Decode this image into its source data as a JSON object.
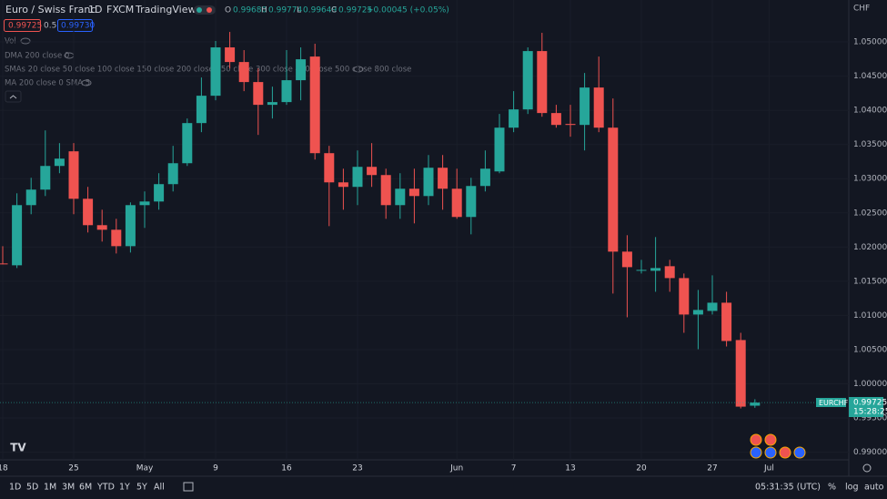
{
  "header": {
    "symbol": "Euro / Swiss Franc",
    "interval": "1D",
    "source": "FXCM",
    "platform": "TradingView",
    "o_label": "O",
    "o_value": "0.99680",
    "h_label": "H",
    "h_value": "0.99774",
    "l_label": "L",
    "l_value": "0.99649",
    "c_label": "C",
    "c_value": "0.99725",
    "change": "+0.00045 (+0.05%)"
  },
  "quote": {
    "bid": "0.99725",
    "spread": "0.5",
    "ask": "0.99730"
  },
  "indicators": [
    "Vol",
    "DMA 200 close 0",
    "SMAs 20 close 50 close 100 close 150 close 200 close 250 close 300 close 400 close 500 close 800 close",
    "MA 200 close 0 SMA 5"
  ],
  "currency": "CHF",
  "price_tag": {
    "symbol": "EURCHF",
    "price": "0.99725",
    "countdown": "15:28:25"
  },
  "toolbar": {
    "ranges": [
      "1D",
      "5D",
      "1M",
      "3M",
      "6M",
      "YTD",
      "1Y",
      "5Y",
      "All"
    ],
    "clock": "05:31:35 (UTC)",
    "percent": "%",
    "log": "log",
    "auto": "auto"
  },
  "chart_data": {
    "type": "candlestick",
    "up_color": "#26a69a",
    "down_color": "#ef5350",
    "categories": [
      "18",
      null,
      null,
      null,
      null,
      "25",
      null,
      null,
      null,
      null,
      "May",
      null,
      null,
      null,
      null,
      "9",
      null,
      null,
      null,
      null,
      "16",
      null,
      null,
      null,
      null,
      "23",
      null,
      null,
      null,
      null,
      null,
      null,
      "Jun",
      null,
      null,
      null,
      "7",
      null,
      null,
      null,
      "13",
      null,
      null,
      null,
      null,
      "20",
      null,
      null,
      null,
      null,
      "27",
      null,
      null,
      null,
      "Jul"
    ],
    "open": [
      1.0176,
      1.01733,
      1.02613,
      1.0284,
      1.03186,
      1.034,
      1.02706,
      1.0232,
      1.02253,
      1.02013,
      1.02613,
      1.02666,
      1.0292,
      1.03226,
      1.03813,
      1.04213,
      1.0492,
      1.04706,
      1.04413,
      1.0408,
      1.0412,
      1.0444,
      1.04786,
      1.03373,
      1.02946,
      1.0288,
      1.03173,
      1.03053,
      1.02613,
      1.02853,
      1.02746,
      1.0316,
      1.02853,
      1.0244,
      1.02893,
      1.03106,
      1.03746,
      1.04013,
      1.04866,
      1.0396,
      1.038,
      1.03786,
      1.04333,
      1.03746,
      1.01933,
      1.01653,
      1.01653,
      1.0172,
      1.01546,
      1.01013,
      1.01066,
      1.01186,
      1.0064,
      0.9968,
      null
    ],
    "high": [
      1.02013,
      1.02786,
      1.03013,
      1.03706,
      1.0352,
      1.0352,
      1.0288,
      1.02546,
      1.02413,
      1.02653,
      1.02813,
      1.0308,
      1.0348,
      1.0388,
      1.0448,
      1.05013,
      1.05146,
      1.0488,
      1.04613,
      1.04346,
      1.0488,
      1.0492,
      1.04973,
      1.0348,
      1.03146,
      1.03413,
      1.0352,
      1.03146,
      1.0308,
      1.03146,
      1.03346,
      1.03346,
      1.03146,
      1.03013,
      1.03413,
      1.03946,
      1.0428,
      1.0492,
      1.05133,
      1.0408,
      1.0408,
      1.04546,
      1.04786,
      1.04173,
      1.02173,
      1.01813,
      1.02146,
      1.01813,
      1.01613,
      1.01373,
      1.01586,
      1.01346,
      1.00746,
      0.99774,
      null
    ],
    "low": [
      1.01746,
      1.01693,
      1.0248,
      1.02746,
      1.0308,
      1.0248,
      1.02213,
      1.0208,
      1.01906,
      1.0192,
      1.0228,
      1.02546,
      1.02813,
      1.03186,
      1.0368,
      1.04146,
      1.04613,
      1.0428,
      1.0364,
      1.0388,
      1.0408,
      1.04146,
      1.0328,
      1.02306,
      1.02546,
      1.02613,
      1.0288,
      1.02413,
      1.02413,
      1.02346,
      1.02613,
      1.02546,
      1.02413,
      1.02186,
      1.02813,
      1.0308,
      1.0368,
      1.03946,
      1.03906,
      1.03746,
      1.03613,
      1.03413,
      1.0368,
      1.0132,
      1.00973,
      1.01613,
      1.01346,
      1.01346,
      1.00746,
      1.00506,
      1.01013,
      1.00546,
      0.9964,
      0.99649,
      null
    ],
    "close": [
      1.0175,
      1.02613,
      1.0284,
      1.03186,
      1.03293,
      1.02706,
      1.0232,
      1.02253,
      1.02013,
      1.02613,
      1.02666,
      1.0292,
      1.03226,
      1.03813,
      1.04213,
      1.0492,
      1.04706,
      1.04413,
      1.0408,
      1.0412,
      1.0444,
      1.04746,
      1.03373,
      1.02946,
      1.0288,
      1.03173,
      1.03053,
      1.02613,
      1.02853,
      1.02746,
      1.0316,
      1.02853,
      1.0244,
      1.02893,
      1.03146,
      1.03746,
      1.04013,
      1.04866,
      1.0396,
      1.03786,
      1.03786,
      1.04333,
      1.03746,
      1.01933,
      1.01706,
      1.01666,
      1.01693,
      1.01546,
      1.01013,
      1.0108,
      1.01186,
      1.00626,
      0.99666,
      0.99725,
      null
    ],
    "ylim": [
      0.98888,
      1.05613
    ],
    "yticks": [
      {
        "value": 0.99,
        "label": "0.99000"
      },
      {
        "value": 0.995,
        "label": "0.99500"
      },
      {
        "value": 1.0,
        "label": "1.00000"
      },
      {
        "value": 1.005,
        "label": "1.00500"
      },
      {
        "value": 1.01,
        "label": "1.01000"
      },
      {
        "value": 1.015,
        "label": "1.01500"
      },
      {
        "value": 1.02,
        "label": "1.02000"
      },
      {
        "value": 1.025,
        "label": "1.02500"
      },
      {
        "value": 1.03,
        "label": "1.03000"
      },
      {
        "value": 1.035,
        "label": "1.03500"
      },
      {
        "value": 1.04,
        "label": "1.04000"
      },
      {
        "value": 1.045,
        "label": "1.04500"
      },
      {
        "value": 1.05,
        "label": "1.05000"
      }
    ],
    "grid": true
  }
}
